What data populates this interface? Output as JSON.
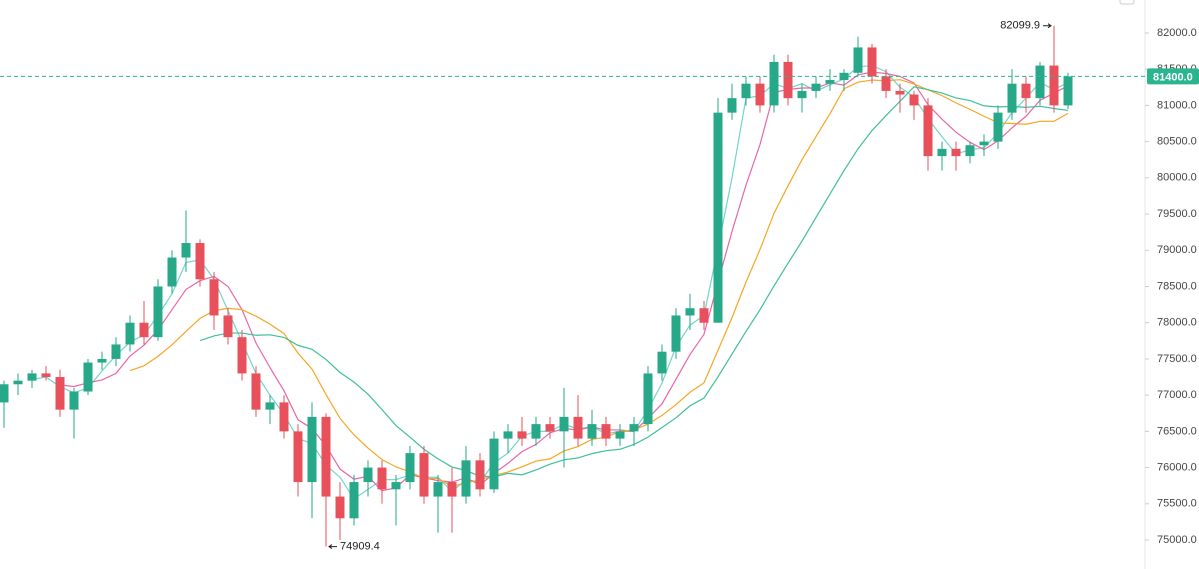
{
  "chart_data": {
    "type": "candlestick",
    "up_color": "#26a889",
    "down_color": "#e8505b",
    "open": [
      76900,
      77150,
      77200,
      77300,
      77250,
      76800,
      77050,
      77450,
      77500,
      77700,
      78000,
      77800,
      78500,
      78900,
      79100,
      78600,
      78100,
      77800,
      77300,
      76800,
      76900,
      76500,
      75800,
      76700,
      75600,
      75300,
      75800,
      76000,
      75700,
      75800,
      76200,
      75600,
      75800,
      75600,
      76100,
      75700,
      76400,
      76500,
      76400,
      76600,
      76500,
      76700,
      76400,
      76600,
      76400,
      76500,
      76600,
      77300,
      77600,
      78100,
      78200,
      78000,
      80900,
      81100,
      81300,
      81000,
      81600,
      81100,
      81200,
      81300,
      81350,
      81450,
      81800,
      81400,
      81200,
      81150,
      81000,
      80300,
      80400,
      80300,
      80450,
      80500,
      80900,
      81300,
      81100,
      81550,
      81000
    ],
    "high": [
      77200,
      77300,
      77350,
      77400,
      77350,
      77100,
      77500,
      77600,
      77800,
      78100,
      78300,
      78600,
      79000,
      79550,
      79150,
      78700,
      78200,
      77900,
      77400,
      77000,
      77000,
      76600,
      76900,
      76750,
      75800,
      75900,
      76100,
      76100,
      75900,
      76300,
      76300,
      75900,
      76000,
      76300,
      76200,
      76500,
      76600,
      76700,
      76700,
      76700,
      77100,
      77000,
      76800,
      76700,
      76600,
      76700,
      77400,
      77700,
      78200,
      78400,
      78300,
      81100,
      81300,
      81400,
      81400,
      81700,
      81700,
      81300,
      81400,
      81500,
      81500,
      81950,
      81850,
      81500,
      81300,
      81200,
      81100,
      80500,
      80500,
      80500,
      80600,
      81000,
      81500,
      81400,
      81600,
      82099.9,
      81450
    ],
    "low": [
      76550,
      77000,
      77100,
      77200,
      76700,
      76400,
      77000,
      77350,
      77400,
      77600,
      77700,
      77750,
      78400,
      78700,
      78500,
      77900,
      77700,
      77200,
      76700,
      76600,
      76400,
      75600,
      75300,
      74909.4,
      75000,
      75200,
      75600,
      75500,
      75200,
      75700,
      75500,
      75100,
      75100,
      75500,
      75600,
      75650,
      76200,
      76300,
      76300,
      76400,
      76000,
      76300,
      76300,
      76300,
      76300,
      76300,
      76500,
      77200,
      77500,
      77900,
      77900,
      78000,
      80800,
      81000,
      80900,
      80900,
      81000,
      80900,
      81100,
      81200,
      81200,
      81400,
      81300,
      81100,
      80900,
      80800,
      80100,
      80100,
      80100,
      80200,
      80300,
      80400,
      80800,
      80900,
      81000,
      80900,
      80950
    ],
    "close": [
      77150,
      77200,
      77300,
      77250,
      76800,
      77050,
      77450,
      77500,
      77700,
      78000,
      77800,
      78500,
      78900,
      79100,
      78600,
      78100,
      77800,
      77300,
      76800,
      76900,
      76500,
      75800,
      76700,
      75600,
      75300,
      75800,
      76000,
      75700,
      75800,
      76200,
      75600,
      75800,
      75600,
      76100,
      75700,
      76400,
      76500,
      76400,
      76600,
      76500,
      76700,
      76400,
      76600,
      76400,
      76500,
      76600,
      77300,
      77600,
      78100,
      78200,
      78000,
      80900,
      81100,
      81300,
      81000,
      81600,
      81100,
      81200,
      81300,
      81350,
      81450,
      81800,
      81400,
      81200,
      81150,
      81000,
      80300,
      80400,
      80300,
      80450,
      80500,
      80900,
      81300,
      81100,
      81550,
      81000,
      81400
    ],
    "lines": [
      {
        "color": "#6fd6c8",
        "values": [
          null,
          null,
          77217,
          77250,
          77117,
          77033,
          77100,
          77333,
          77550,
          77733,
          77833,
          78100,
          78400,
          78833,
          78867,
          78600,
          78167,
          77733,
          77300,
          77000,
          76733,
          76400,
          76333,
          76033,
          75867,
          75567,
          75700,
          75833,
          75833,
          75900,
          75867,
          75867,
          75667,
          75833,
          75800,
          76067,
          76200,
          76433,
          76500,
          76500,
          76600,
          76533,
          76567,
          76467,
          76500,
          76500,
          76800,
          77167,
          77667,
          77967,
          78100,
          79033,
          80000,
          81100,
          81133,
          81300,
          81233,
          81300,
          81200,
          81283,
          81367,
          81533,
          81550,
          81467,
          81250,
          81117,
          80817,
          80567,
          80333,
          80383,
          80417,
          80617,
          80900,
          81100,
          81317,
          81217,
          81317
        ]
      },
      {
        "color": "#e866a8",
        "values": [
          null,
          null,
          null,
          null,
          77140,
          77120,
          77170,
          77210,
          77300,
          77540,
          77690,
          77900,
          78180,
          78460,
          78580,
          78640,
          78500,
          78180,
          77720,
          77380,
          77060,
          76660,
          76540,
          76300,
          75980,
          75840,
          75880,
          75680,
          75720,
          75900,
          75860,
          75820,
          75800,
          75860,
          75760,
          75920,
          76060,
          76220,
          76320,
          76480,
          76540,
          76520,
          76560,
          76520,
          76520,
          76500,
          76680,
          76880,
          77220,
          77560,
          77840,
          78560,
          79260,
          79900,
          80460,
          81180,
          81220,
          81240,
          81240,
          81310,
          81280,
          81420,
          81460,
          81440,
          81400,
          81310,
          81010,
          80810,
          80630,
          80490,
          80390,
          80510,
          80690,
          80850,
          81070,
          81170,
          81270
        ]
      },
      {
        "color": "#f5a623",
        "values": [
          null,
          null,
          null,
          null,
          null,
          null,
          null,
          null,
          null,
          77340,
          77405,
          77535,
          77695,
          77880,
          78060,
          78165,
          78200,
          78180,
          78090,
          77980,
          77850,
          77580,
          77360,
          77010,
          76680,
          76450,
          76270,
          76110,
          76010,
          75940,
          75850,
          75850,
          75740,
          75790,
          75830,
          75890,
          75940,
          76010,
          76090,
          76120,
          76230,
          76290,
          76390,
          76420,
          76500,
          76520,
          76600,
          76720,
          76870,
          77040,
          77170,
          77620,
          78070,
          78560,
          79010,
          79510,
          79890,
          80250,
          80570,
          80885,
          81230,
          81320,
          81350,
          81340,
          81355,
          81295,
          81215,
          81135,
          81035,
          80945,
          80850,
          80760,
          80750,
          80740,
          80780,
          80780,
          80890
        ]
      },
      {
        "color": "#3fbf9a",
        "values": [
          null,
          null,
          null,
          null,
          null,
          null,
          null,
          null,
          null,
          null,
          null,
          null,
          null,
          null,
          77753,
          77817,
          77857,
          77857,
          77827,
          77833,
          77797,
          77687,
          77633,
          77493,
          77313,
          77180,
          77013,
          76800,
          76580,
          76420,
          76253,
          76120,
          76007,
          75960,
          75880,
          75873,
          75920,
          75900,
          75967,
          76047,
          76107,
          76133,
          76193,
          76233,
          76253,
          76320,
          76420,
          76553,
          76687,
          76853,
          76960,
          77253,
          77567,
          77880,
          78180,
          78507,
          78820,
          79127,
          79453,
          79777,
          80100,
          80400,
          80653,
          80860,
          81057,
          81257,
          81217,
          81170,
          81103,
          81067,
          80993,
          80980,
          80987,
          80973,
          80987,
          80957,
          80930
        ]
      }
    ],
    "ylim": [
      74600,
      82455
    ],
    "yticks": [
      {
        "value": 75000,
        "label": "75000.0"
      },
      {
        "value": 75500,
        "label": "75500.0"
      },
      {
        "value": 76000,
        "label": "76000.0"
      },
      {
        "value": 76500,
        "label": "76500.0"
      },
      {
        "value": 77000,
        "label": "77000.0"
      },
      {
        "value": 77500,
        "label": "77500.0"
      },
      {
        "value": 78000,
        "label": "78000.0"
      },
      {
        "value": 78500,
        "label": "78500.0"
      },
      {
        "value": 79000,
        "label": "79000.0"
      },
      {
        "value": 79500,
        "label": "79500.0"
      },
      {
        "value": 80000,
        "label": "80000.0"
      },
      {
        "value": 80500,
        "label": "80500.0"
      },
      {
        "value": 81000,
        "label": "81000.0"
      },
      {
        "value": 81500,
        "label": "81500.0"
      },
      {
        "value": 82000,
        "label": "82000.0"
      }
    ],
    "last_price": {
      "value": 81400,
      "label": "81400.0",
      "color": "#2bb58f"
    },
    "high_label": {
      "value": 82099.9,
      "label": "82099.9"
    },
    "low_label": {
      "value": 74909.4,
      "label": "74909.4"
    },
    "grid": false
  }
}
